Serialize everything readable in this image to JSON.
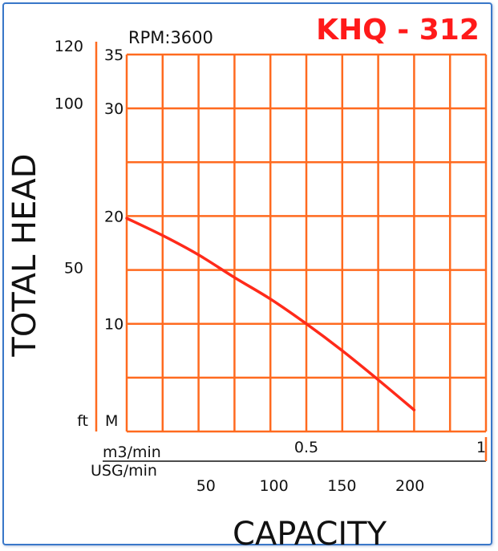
{
  "chart_data": {
    "type": "line",
    "title": "KHQ - 312",
    "subtitle": "RPM:3600",
    "ylabel": "TOTAL HEAD",
    "xlabel": "CAPACITY",
    "y_units": {
      "left": "ft",
      "right": "M"
    },
    "x_units": {
      "primary": "m3/min",
      "secondary": "USG/min"
    },
    "ylim": [
      0,
      35
    ],
    "xlim": [
      0,
      1
    ],
    "y_ticks_m": [
      10,
      20,
      30,
      35
    ],
    "y_ticks_m_labels": [
      "10",
      "20",
      "30",
      "35"
    ],
    "y_ticks_ft": [
      50,
      100,
      120
    ],
    "y_ticks_ft_labels": [
      "50",
      "100",
      "120"
    ],
    "x_ticks_m3": [
      0.5,
      1
    ],
    "x_ticks_m3_labels": [
      "0.5",
      "1"
    ],
    "x_ticks_usg": [
      50,
      100,
      150,
      200
    ],
    "x_ticks_usg_labels": [
      "50",
      "100",
      "150",
      "200"
    ],
    "grid": true,
    "series": [
      {
        "x": [
          0.0,
          0.1,
          0.2,
          0.3,
          0.4,
          0.5,
          0.6,
          0.7,
          0.8
        ],
        "y": [
          19.8,
          18.2,
          16.4,
          14.3,
          12.3,
          10.0,
          7.5,
          4.8,
          2.0
        ]
      }
    ],
    "colors": {
      "curve": "#ff2a1a",
      "grid": "#ff6a1f",
      "title": "#ff1a1a",
      "frame": "#3a78c9"
    }
  }
}
